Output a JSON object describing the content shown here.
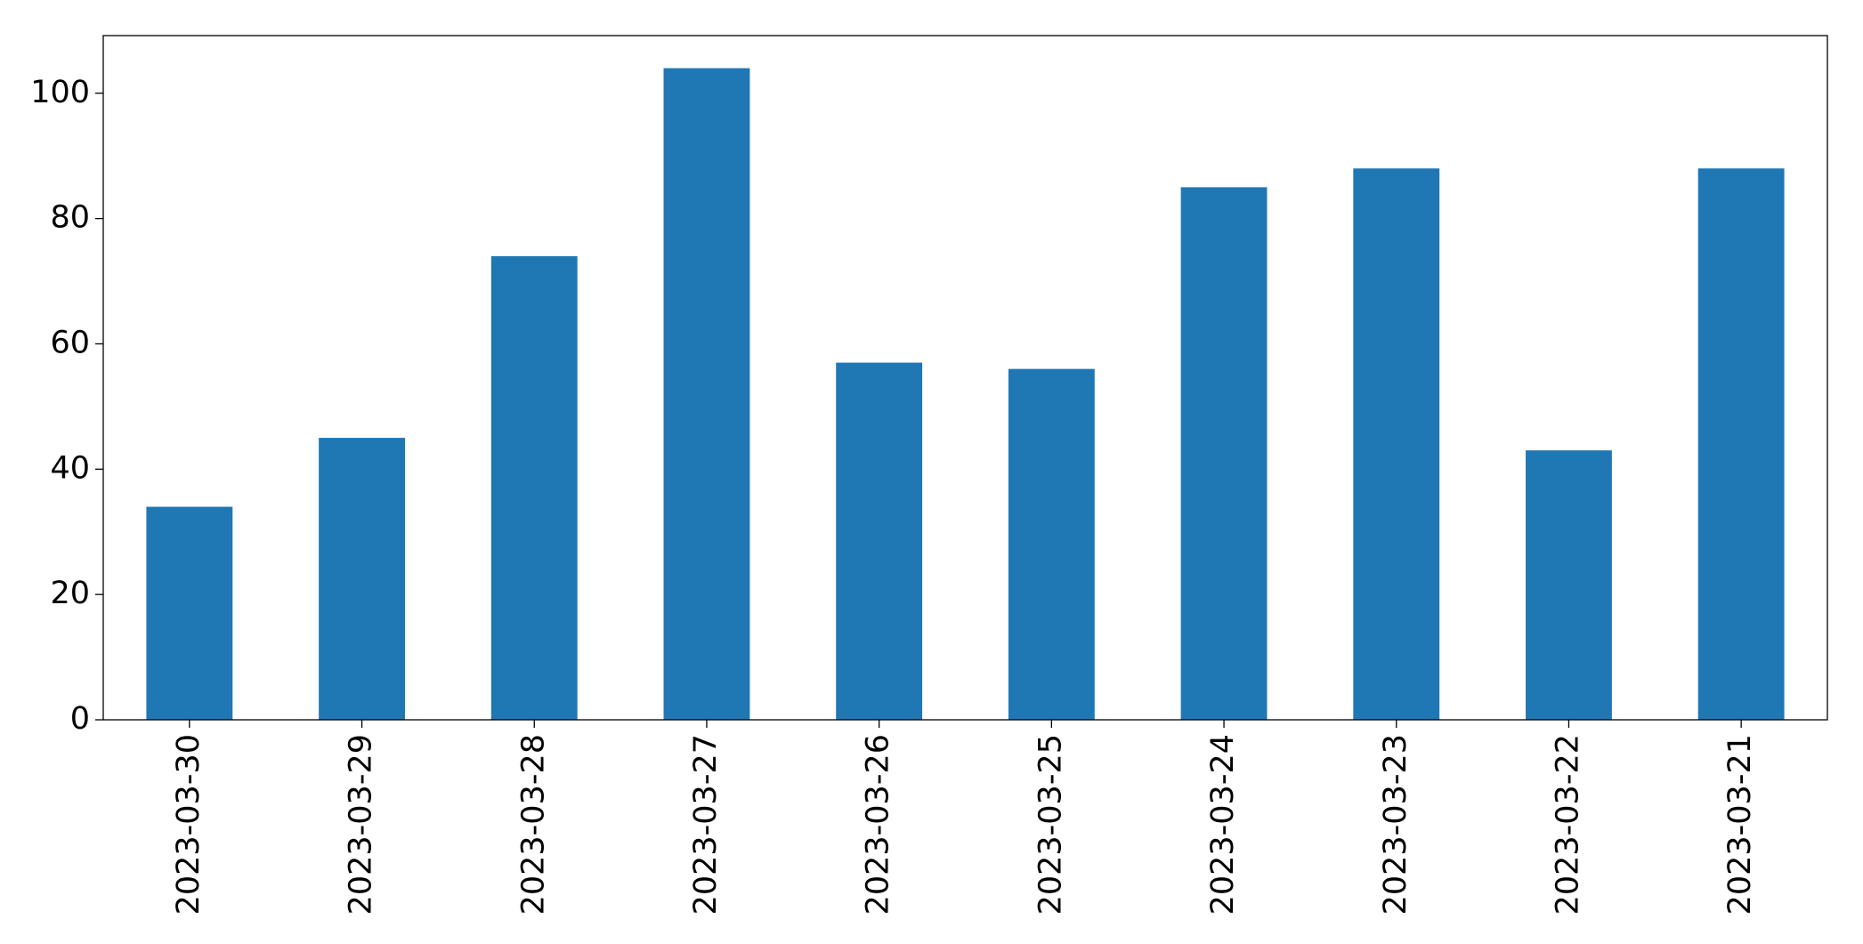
{
  "chart_data": {
    "type": "bar",
    "categories": [
      "2023-03-30",
      "2023-03-29",
      "2023-03-28",
      "2023-03-27",
      "2023-03-26",
      "2023-03-25",
      "2023-03-24",
      "2023-03-23",
      "2023-03-22",
      "2023-03-21"
    ],
    "values": [
      34,
      45,
      74,
      104,
      57,
      56,
      85,
      88,
      43,
      88
    ],
    "color": "#1f77b4",
    "ylim": [
      0,
      109.2
    ],
    "yticks": [
      0,
      20,
      40,
      60,
      80,
      100
    ],
    "grid": false
  }
}
